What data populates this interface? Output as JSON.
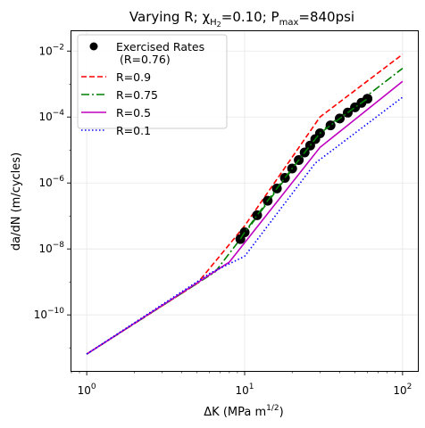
{
  "chart_data": {
    "type": "line",
    "title": {
      "prefix": "Varying R; χ",
      "sub1": "H",
      "sub2": "2",
      "middle": "=0.10; P",
      "sub3": "max",
      "suffix": "=840psi"
    },
    "xlabel": {
      "pre": "ΔK (MPa m",
      "sup": "1/2",
      "post": ")"
    },
    "ylabel": "da/dN (m/cycles)",
    "x_scale": "log",
    "y_scale": "log",
    "xlim": [
      0.8,
      125
    ],
    "ylim": [
      2e-12,
      0.04
    ],
    "grid": true,
    "legend_position": "upper-left",
    "x_ticks": [
      {
        "value": 1,
        "base": "10",
        "exp": "0"
      },
      {
        "value": 10,
        "base": "10",
        "exp": "1"
      },
      {
        "value": 100,
        "base": "10",
        "exp": "2"
      }
    ],
    "y_ticks": [
      {
        "value": 1e-10,
        "base": "10",
        "exp": "−10"
      },
      {
        "value": 1e-08,
        "base": "10",
        "exp": "−8"
      },
      {
        "value": 1e-06,
        "base": "10",
        "exp": "−6"
      },
      {
        "value": 0.0001,
        "base": "10",
        "exp": "−4"
      },
      {
        "value": 0.01,
        "base": "10",
        "exp": "−2"
      }
    ],
    "series": [
      {
        "name": "Exercised Rates\n (R=0.76)",
        "kind": "markers",
        "color": "#000000",
        "inner_color": "#008000",
        "x": [
          9.4,
          10,
          12,
          14,
          16,
          18,
          20,
          22,
          24,
          26,
          28,
          30,
          35,
          40,
          45,
          50,
          55,
          60
        ],
        "y": [
          2e-08,
          3.2e-08,
          1.05e-07,
          2.9e-07,
          6.8e-07,
          1.43e-06,
          2.75e-06,
          4.95e-06,
          8.4e-06,
          1.37e-05,
          2.14e-05,
          3.2e-05,
          5.6e-05,
          9e-05,
          0.000136,
          0.000196,
          0.00027,
          0.00036
        ]
      },
      {
        "name": "R=0.9",
        "kind": "line",
        "dash": "6,3",
        "color": "#ff0000",
        "x": [
          1,
          5,
          10,
          30,
          100
        ],
        "y": [
          6.5e-12,
          9e-10,
          5e-08,
          0.0001,
          0.008
        ]
      },
      {
        "name": "R=0.75",
        "kind": "line",
        "dash": "9,3,2,3",
        "color": "#008000",
        "x": [
          1,
          6.5,
          9.4,
          30,
          100
        ],
        "y": [
          6.5e-12,
          2e-09,
          2e-08,
          3.5e-05,
          0.003
        ]
      },
      {
        "name": "R=0.5",
        "kind": "line",
        "dash": "",
        "color": "#bf00bf",
        "x": [
          1,
          8,
          30,
          100
        ],
        "y": [
          6.5e-12,
          4e-09,
          1.2e-05,
          0.0012
        ]
      },
      {
        "name": "R=0.1",
        "kind": "line",
        "dash": "1.5,2.5",
        "color": "#0000ff",
        "x": [
          1,
          6,
          10,
          28,
          100
        ],
        "y": [
          6.5e-12,
          1.8e-09,
          6e-09,
          4e-06,
          0.0004
        ]
      }
    ]
  }
}
